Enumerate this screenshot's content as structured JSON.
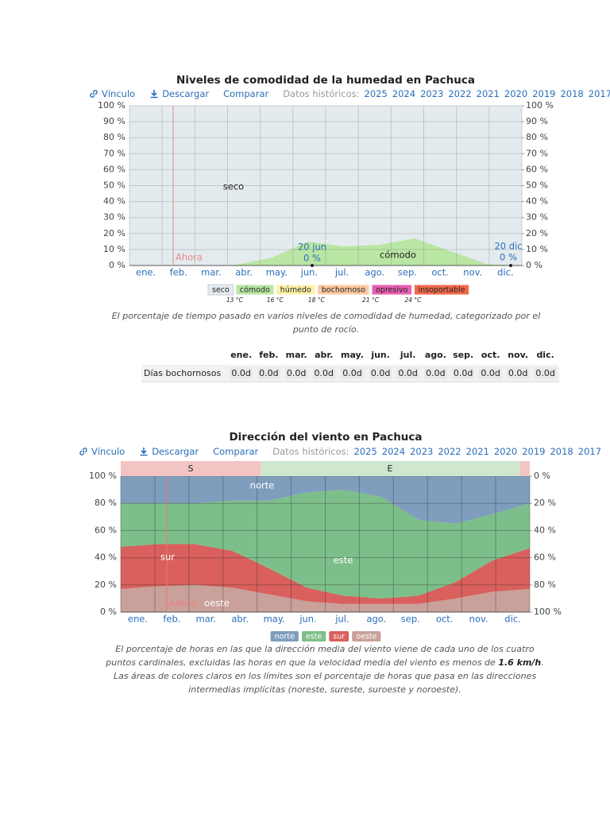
{
  "toolbar": {
    "link": "Vínculo",
    "download": "Descargar",
    "compare": "Comparar",
    "history": "Datos históricos:",
    "years": [
      "2025",
      "2024",
      "2023",
      "2022",
      "2021",
      "2020",
      "2019",
      "2018",
      "2017"
    ]
  },
  "chart_data": [
    {
      "type": "area",
      "stacked": true,
      "title": "Niveles de comodidad de la humedad en Pachuca",
      "categories": [
        "ene.",
        "feb.",
        "mar.",
        "abr.",
        "may.",
        "jun.",
        "jul.",
        "ago.",
        "sep.",
        "oct.",
        "nov.",
        "dic."
      ],
      "series": [
        {
          "name": "seco",
          "color": "#e3ebee",
          "values": [
            100,
            100,
            100,
            99.5,
            95,
            85,
            88,
            87,
            83,
            91,
            99,
            100
          ]
        },
        {
          "name": "cómodo",
          "color": "#b9e6a3",
          "values": [
            0,
            0,
            0,
            0.5,
            5,
            15,
            12,
            13,
            17,
            9,
            1,
            0
          ]
        },
        {
          "name": "húmedo",
          "color": "#fdf0a7",
          "values": [
            0,
            0,
            0,
            0,
            0,
            0,
            0,
            0,
            0,
            0,
            0,
            0
          ]
        },
        {
          "name": "bochornoso",
          "color": "#fcc9a2",
          "values": [
            0,
            0,
            0,
            0,
            0,
            0,
            0,
            0,
            0,
            0,
            0,
            0
          ]
        },
        {
          "name": "opresivo",
          "color": "#e85fb0",
          "values": [
            0,
            0,
            0,
            0,
            0,
            0,
            0,
            0,
            0,
            0,
            0,
            0
          ]
        },
        {
          "name": "insoportable",
          "color": "#f0694a",
          "values": [
            0,
            0,
            0,
            0,
            0,
            0,
            0,
            0,
            0,
            0,
            0,
            0
          ]
        }
      ],
      "legend_thresholds": [
        {
          "value": 13,
          "label": "13 °C"
        },
        {
          "value": 16,
          "label": "16 °C"
        },
        {
          "value": 18,
          "label": "18 °C"
        },
        {
          "value": 21,
          "label": "21 °C"
        },
        {
          "value": 24,
          "label": "24 °C"
        }
      ],
      "ylim": [
        0,
        100
      ],
      "yticks": [
        {
          "value": 0,
          "label": "0 %"
        },
        {
          "value": 10,
          "label": "10 %"
        },
        {
          "value": 20,
          "label": "20 %"
        },
        {
          "value": 30,
          "label": "30 %"
        },
        {
          "value": 40,
          "label": "40 %"
        },
        {
          "value": 50,
          "label": "50 %"
        },
        {
          "value": 60,
          "label": "60 %"
        },
        {
          "value": 70,
          "label": "70 %"
        },
        {
          "value": 80,
          "label": "80 %"
        },
        {
          "value": 90,
          "label": "90 %"
        },
        {
          "value": 100,
          "label": "100 %"
        }
      ],
      "y2lim": [
        0,
        100
      ],
      "y2ticks": [
        {
          "value": 0,
          "label": "0 %"
        },
        {
          "value": 10,
          "label": "10 %"
        },
        {
          "value": 20,
          "label": "20 %"
        },
        {
          "value": 30,
          "label": "30 %"
        },
        {
          "value": 40,
          "label": "40 %"
        },
        {
          "value": 50,
          "label": "50 %"
        },
        {
          "value": 60,
          "label": "60 %"
        },
        {
          "value": 70,
          "label": "70 %"
        },
        {
          "value": 80,
          "label": "80 %"
        },
        {
          "value": 90,
          "label": "90 %"
        },
        {
          "value": 100,
          "label": "100 %"
        }
      ],
      "grid": true,
      "annotations": {
        "seco": "seco",
        "comodo": "cómodo",
        "now": "Ahora",
        "jun_date": "20 jun",
        "jun_value": "0 %",
        "dec_date": "20 dic",
        "dec_value": "0 %"
      },
      "caption": "El porcentaje de tiempo pasado en varios niveles de comodidad de humedad, categorizado por el punto de rocío."
    },
    {
      "type": "area",
      "stacked": true,
      "title": "Dirección del viento en Pachuca",
      "categories": [
        "ene.",
        "feb.",
        "mar.",
        "abr.",
        "may.",
        "jun.",
        "jul.",
        "ago.",
        "sep.",
        "oct.",
        "nov.",
        "dic."
      ],
      "series": [
        {
          "name": "norte",
          "color": "#7f9ebd",
          "values": [
            20,
            20,
            20,
            18,
            18,
            12,
            10,
            15,
            32,
            35,
            28,
            20
          ]
        },
        {
          "name": "este",
          "color": "#7dbf8a",
          "values": [
            32,
            30,
            30,
            37,
            50,
            70,
            78,
            75,
            56,
            43,
            34,
            33
          ]
        },
        {
          "name": "sur",
          "color": "#d9605c",
          "values": [
            31,
            31,
            30,
            27,
            19,
            10,
            6,
            4,
            6,
            12,
            23,
            30
          ]
        },
        {
          "name": "oeste",
          "color": "#c9a09a",
          "values": [
            17,
            19,
            20,
            18,
            13,
            8,
            6,
            6,
            6,
            10,
            15,
            17
          ]
        }
      ],
      "ylim": [
        0,
        100
      ],
      "yticks": [
        {
          "value": 0,
          "label": "0 %"
        },
        {
          "value": 20,
          "label": "20 %"
        },
        {
          "value": 40,
          "label": "40 %"
        },
        {
          "value": 60,
          "label": "60 %"
        },
        {
          "value": 80,
          "label": "80 %"
        },
        {
          "value": 100,
          "label": "100 %"
        }
      ],
      "y2lim": [
        100,
        0
      ],
      "y2ticks": [
        {
          "value": 0,
          "label": "0 %"
        },
        {
          "value": 20,
          "label": "20 %"
        },
        {
          "value": 40,
          "label": "40 %"
        },
        {
          "value": 60,
          "label": "60 %"
        },
        {
          "value": 80,
          "label": "80 %"
        },
        {
          "value": 100,
          "label": "100 %"
        }
      ],
      "grid": true,
      "direction_bands": [
        "S",
        "E"
      ],
      "annotations": {
        "norte": "norte",
        "este": "este",
        "sur": "sur",
        "oeste": "oeste",
        "now": "Ahora"
      },
      "caption_before": "El porcentaje de horas en las que la dirección media del viento viene de cada uno de los cuatro puntos cardinales, excluidas las horas en que la velocidad media del viento es menos de",
      "caption_bold": "1.6 km/h",
      "caption_after": ". Las áreas de colores claros en los límites son el porcentaje de horas que pasa en las direcciones intermedias implícitas (noreste, sureste, suroeste y noroeste)."
    }
  ],
  "table": {
    "columns": [
      "ene.",
      "feb.",
      "mar.",
      "abr.",
      "may.",
      "jun.",
      "jul.",
      "ago.",
      "sep.",
      "oct.",
      "nov.",
      "dic."
    ],
    "rows": [
      [
        "Días bochornosos",
        "0.0d",
        "0.0d",
        "0.0d",
        "0.0d",
        "0.0d",
        "0.0d",
        "0.0d",
        "0.0d",
        "0.0d",
        "0.0d",
        "0.0d",
        "0.0d"
      ]
    ]
  }
}
